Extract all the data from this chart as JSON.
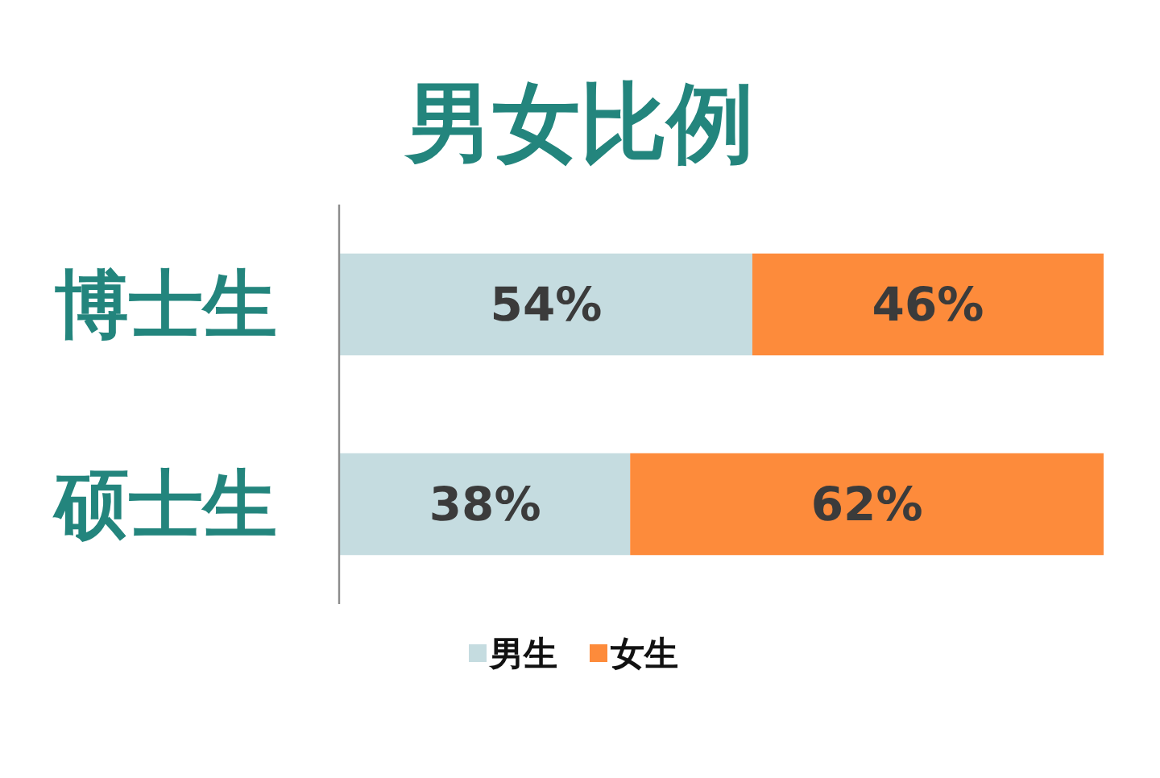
{
  "chart_data": {
    "type": "bar",
    "orientation": "horizontal",
    "stacked": true,
    "title": "男女比例",
    "categories": [
      "博士生",
      "硕士生"
    ],
    "series": [
      {
        "name": "男生",
        "color": "#c5dce0",
        "values": [
          54,
          38
        ],
        "value_labels": [
          "54%",
          "38%"
        ]
      },
      {
        "name": "女生",
        "color": "#fd8b3b",
        "values": [
          46,
          62
        ],
        "value_labels": [
          "46%",
          "62%"
        ]
      }
    ],
    "legend": "bottom",
    "tick_labels": "y"
  }
}
